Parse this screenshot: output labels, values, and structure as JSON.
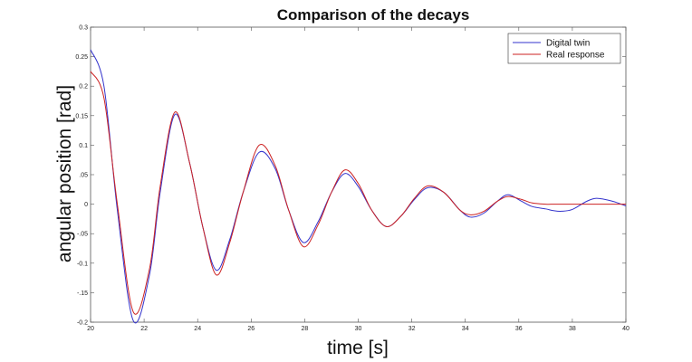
{
  "chart_data": {
    "type": "line",
    "title": "Comparison of the decays",
    "xlabel": "time [s]",
    "ylabel": "angular position [rad]",
    "xlim": [
      20,
      40
    ],
    "ylim": [
      -0.2,
      0.3
    ],
    "x_ticks": [
      "20",
      "22",
      "24",
      "26",
      "28",
      "30",
      "32",
      "34",
      "36",
      "38",
      "40"
    ],
    "y_ticks": [
      "-0.2",
      "-.15",
      "-0.1",
      "-.05",
      "0",
      ".05",
      "0.1",
      "0.15",
      "0.2",
      "0.25",
      "0.3"
    ],
    "legend_position": "top-right",
    "grid": false,
    "colors": {
      "digital": "#3333cc",
      "real": "#cc2222"
    },
    "series": [
      {
        "name": "Digital twin",
        "color": "#3333cc",
        "x": [
          20.0,
          20.5,
          21.0,
          21.6,
          22.2,
          22.6,
          23.15,
          23.7,
          24.2,
          24.7,
          25.2,
          25.7,
          26.3,
          26.9,
          27.4,
          27.95,
          28.5,
          29.0,
          29.5,
          30.0,
          30.5,
          31.05,
          31.6,
          32.1,
          32.6,
          33.2,
          33.8,
          34.2,
          34.7,
          35.2,
          35.6,
          36.1,
          36.5,
          37.0,
          37.3,
          37.6,
          38.0,
          38.5,
          38.9,
          39.5,
          40.0
        ],
        "y": [
          0.262,
          0.2,
          -0.01,
          -0.198,
          -0.12,
          0.02,
          0.152,
          0.07,
          -0.04,
          -0.112,
          -0.06,
          0.02,
          0.088,
          0.06,
          -0.01,
          -0.065,
          -0.03,
          0.02,
          0.052,
          0.03,
          -0.01,
          -0.038,
          -0.02,
          0.008,
          0.028,
          0.02,
          -0.01,
          -0.022,
          -0.015,
          0.005,
          0.016,
          0.005,
          -0.004,
          -0.008,
          -0.011,
          -0.012,
          -0.009,
          0.004,
          0.01,
          0.005,
          -0.003
        ]
      },
      {
        "name": "Real response",
        "color": "#cc2222",
        "x": [
          20.0,
          20.5,
          21.0,
          21.6,
          22.2,
          22.6,
          23.15,
          23.7,
          24.2,
          24.7,
          25.2,
          25.7,
          26.3,
          26.9,
          27.4,
          27.95,
          28.5,
          29.0,
          29.5,
          30.0,
          30.5,
          31.05,
          31.6,
          32.1,
          32.6,
          33.2,
          33.8,
          34.2,
          34.7,
          35.2,
          35.6,
          36.1,
          36.5,
          37.0,
          37.3,
          37.6,
          38.0,
          38.5,
          38.9,
          39.5,
          40.0
        ],
        "y": [
          0.225,
          0.18,
          0.0,
          -0.183,
          -0.11,
          0.03,
          0.156,
          0.07,
          -0.04,
          -0.12,
          -0.065,
          0.02,
          0.1,
          0.065,
          -0.01,
          -0.072,
          -0.035,
          0.02,
          0.058,
          0.035,
          -0.01,
          -0.038,
          -0.02,
          0.01,
          0.031,
          0.02,
          -0.01,
          -0.018,
          -0.012,
          0.005,
          0.013,
          0.008,
          0.002,
          0.0,
          0.0,
          0.0,
          0.0,
          0.0,
          0.0,
          0.0,
          0.0
        ]
      }
    ]
  }
}
